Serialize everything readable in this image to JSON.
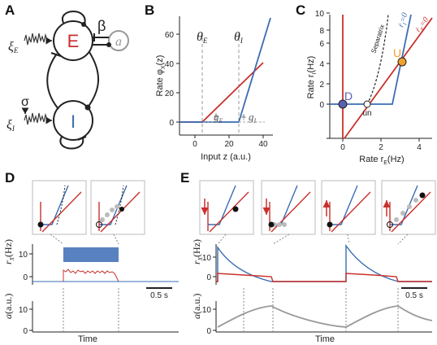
{
  "panels": {
    "A": {
      "label": "A",
      "node_E": "E",
      "node_I": "I",
      "node_a": "a",
      "beta": "β",
      "sigma": "σ",
      "noise_E": "ξ",
      "noise_E_sub": "E",
      "noise_I": "ξ",
      "noise_I_sub": "I"
    },
    "B": {
      "label": "B",
      "ylabel": "Rate φ",
      "ylabel_sub": "X",
      "ylabel_tail": "(z)",
      "xlabel": "Input z (a.u.)",
      "xticks": [
        "0",
        "20",
        "40"
      ],
      "yticks": [
        "0",
        "20",
        "40",
        "60"
      ],
      "theta_E": "θ",
      "theta_E_sub": "E",
      "theta_I": "θ",
      "theta_I_sub": "I",
      "g_E": "g",
      "g_E_sub": "E",
      "g_I": "g",
      "g_I_sub": "I"
    },
    "C": {
      "label": "C",
      "ylabel": "Rate r",
      "ylabel_sub": "I",
      "ylabel_tail": "(Hz)",
      "xlabel": "Rate r",
      "xlabel_sub": "E",
      "xlabel_tail": "(Hz)",
      "xticks": [
        "0",
        "2",
        "4"
      ],
      "yticks": [
        "0",
        "2",
        "4",
        "6",
        "8",
        "10"
      ],
      "separatrix": "Separatrix",
      "nullcline_I": "ṙ",
      "nullcline_I_sub": "I",
      "nullcline_I_tail": "=0",
      "nullcline_E": "ṙ",
      "nullcline_E_sub": "E",
      "nullcline_E_tail": "=0",
      "point_D": "D",
      "point_U": "U",
      "point_un": "un"
    },
    "D": {
      "label": "D",
      "rate_label": "r",
      "rate_sub": "X",
      "rate_unit": "(Hz)",
      "rate_ticks": [
        "0",
        "10"
      ],
      "a_label": "a",
      "a_unit": "(a.u.)",
      "a_ticks": [
        "0",
        "10"
      ],
      "scale_bar": "0.5 s",
      "time_label": "Time"
    },
    "E": {
      "label": "E",
      "rate_label": "r",
      "rate_sub": "X",
      "rate_unit": "(Hz)",
      "rate_ticks": [
        "0",
        "10"
      ],
      "a_label": "a",
      "a_unit": "(a.u.)",
      "a_ticks": [
        "0",
        "10"
      ],
      "scale_bar": "0.5 s",
      "time_label": "Time"
    }
  },
  "colors": {
    "excitatory": "#c8302c",
    "inhibitory": "#3a6cb4",
    "adaptation": "#999999",
    "down_state": "#5b5fb0",
    "up_state": "#f0a02c",
    "dashed": "#888888"
  }
}
